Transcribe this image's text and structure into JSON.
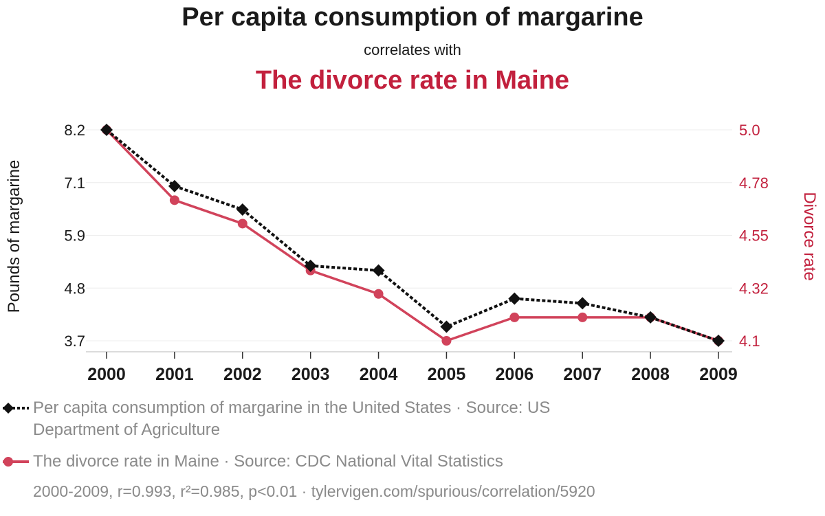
{
  "title": {
    "main": "Per capita consumption of margarine",
    "connector": "correlates with",
    "secondary": "The divorce rate in Maine"
  },
  "legend": {
    "series1_line1": "Per capita consumption of margarine in the United States · Source: US",
    "series1_line2": "Department of Agriculture",
    "series2": "The divorce rate in Maine · Source: CDC National Vital Statistics"
  },
  "footer": "2000-2009, r=0.993, r²=0.985, p<0.01 · tylervigen.com/spurious/correlation/5920",
  "colors": {
    "margarine": "#111111",
    "divorce": "#d1435b",
    "divorce_text": "#c2203d",
    "axis_text": "#1a1a1a"
  },
  "chart_data": {
    "type": "line",
    "x": [
      "2000",
      "2001",
      "2002",
      "2003",
      "2004",
      "2005",
      "2006",
      "2007",
      "2008",
      "2009"
    ],
    "xlabel": "",
    "ylabel_left": "Pounds of margarine",
    "ylabel_right": "Divorce rate",
    "yticks_left": [
      "8.2",
      "7.1",
      "5.9",
      "4.8",
      "3.7"
    ],
    "yticks_right": [
      "5.0",
      "4.78",
      "4.55",
      "4.32",
      "4.1"
    ],
    "ylim_left": [
      3.7,
      8.2
    ],
    "ylim_right": [
      4.1,
      5.0
    ],
    "grid": true,
    "legend_position": "bottom-left",
    "series": [
      {
        "name": "Per capita consumption of margarine in the United States",
        "axis": "left",
        "style": "dashed",
        "marker": "diamond",
        "values": [
          8.2,
          7.0,
          6.5,
          5.3,
          5.2,
          4.0,
          4.6,
          4.5,
          4.2,
          3.7
        ]
      },
      {
        "name": "The divorce rate in Maine",
        "axis": "right",
        "style": "solid",
        "marker": "circle",
        "values": [
          5.0,
          4.7,
          4.6,
          4.4,
          4.3,
          4.1,
          4.2,
          4.2,
          4.2,
          4.1
        ]
      }
    ]
  }
}
